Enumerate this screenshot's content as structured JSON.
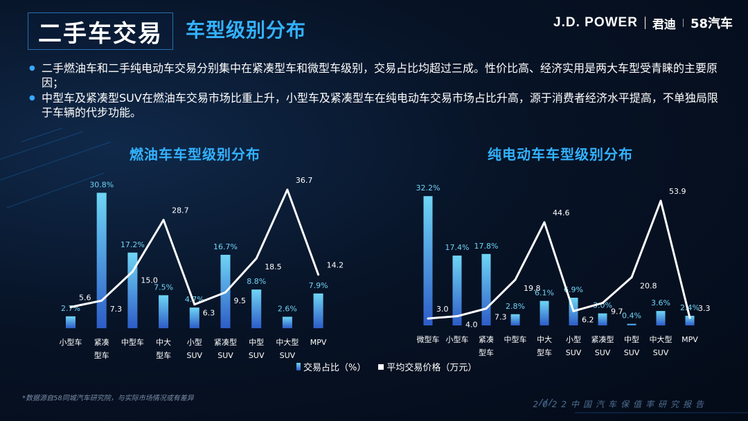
{
  "header": {
    "main_title": "二手车交易",
    "sub_title": "车型级别分布",
    "brand_jd": "J.D. POWER",
    "brand_cn": "君迪",
    "brand_58": "58汽车"
  },
  "bullets": [
    "二手燃油车和二手纯电动车交易分别集中在紧凑型车和微型车级别，交易占比均超过三成。性价比高、经济实用是两大车型受青睐的主要原因；",
    "中型车及紧凑型SUV在燃油车交易市场比重上升，小型车及紧凑型车在纯电动车交易市场占比升高，源于消费者经济水平提高，不单独局限于车辆的代步功能。"
  ],
  "legend": {
    "bar_label": "交易占比（%）",
    "line_label": "平均交易价格（万元）"
  },
  "footnote": "*数据源自58同城汽车研究院，与实际市场情况或有差异",
  "footer_right": "2022中国汽车保值率研究报告",
  "colors": {
    "bar_top": "#6fd5f5",
    "bar_bottom": "#2d5cc7",
    "line": "#ffffff",
    "title": "#33b2ff"
  },
  "chart_data": [
    {
      "type": "bar",
      "title": "燃油车车型级别分布",
      "categories": [
        [
          "小型车"
        ],
        [
          "紧凑",
          "型车"
        ],
        [
          "中型车"
        ],
        [
          "中大",
          "型车"
        ],
        [
          "小型",
          "SUV"
        ],
        [
          "紧凑型",
          "SUV"
        ],
        [
          "中型",
          "SUV"
        ],
        [
          "中大型",
          "SUV"
        ],
        [
          "MPV"
        ]
      ],
      "series": [
        {
          "name": "交易占比（%）",
          "type": "bar",
          "values": [
            2.7,
            30.8,
            17.2,
            7.5,
            4.7,
            16.7,
            8.8,
            2.6,
            7.9
          ],
          "labels": [
            "2.7%",
            "30.8%",
            "17.2%",
            "7.5%",
            "4.7%",
            "16.7%",
            "8.8%",
            "2.6%",
            "7.9%"
          ]
        },
        {
          "name": "平均交易价格（万元）",
          "type": "line",
          "values": [
            5.6,
            7.3,
            15.0,
            28.7,
            6.3,
            9.5,
            18.5,
            36.7,
            14.2
          ],
          "labels": [
            "5.6",
            "7.3",
            "15.0",
            "28.7",
            "6.3",
            "9.5",
            "18.5",
            "36.7",
            "14.2"
          ]
        }
      ]
    },
    {
      "type": "bar",
      "title": "纯电动车车型级别分布",
      "categories": [
        [
          "微型车"
        ],
        [
          "小型车"
        ],
        [
          "紧凑",
          "型车"
        ],
        [
          "中型车"
        ],
        [
          "中大",
          "型车"
        ],
        [
          "小型",
          "SUV"
        ],
        [
          "紧凑型",
          "SUV"
        ],
        [
          "中型",
          "SUV"
        ],
        [
          "中大型",
          "SUV"
        ],
        [
          "MPV"
        ]
      ],
      "series": [
        {
          "name": "交易占比（%）",
          "type": "bar",
          "values": [
            32.2,
            17.4,
            17.8,
            2.8,
            6.1,
            6.9,
            3.0,
            0.4,
            3.6,
            2.4
          ],
          "labels": [
            "32.2%",
            "17.4%",
            "17.8%",
            "2.8%",
            "6.1%",
            "6.9%",
            "3.0%",
            "0.4%",
            "3.6%",
            "2.4%"
          ]
        },
        {
          "name": "平均交易价格（万元）",
          "type": "line",
          "values": [
            3.0,
            4.0,
            7.3,
            19.8,
            44.6,
            6.2,
            9.7,
            20.8,
            53.9,
            3.3
          ],
          "labels": [
            "3.0",
            "4.0",
            "7.3",
            "19.8",
            "44.6",
            "6.2",
            "9.7",
            "20.8",
            "53.9",
            "3.3"
          ]
        }
      ]
    }
  ]
}
